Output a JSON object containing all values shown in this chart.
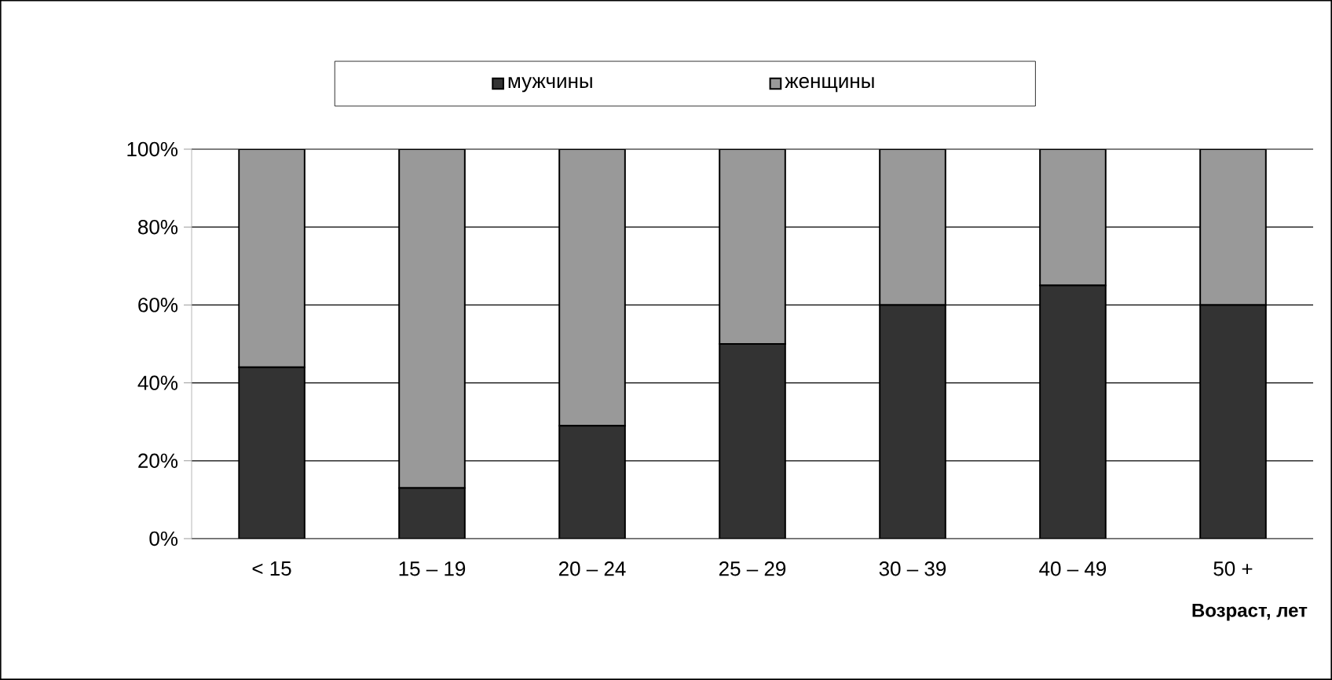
{
  "chart_data": {
    "type": "bar",
    "stacked": true,
    "xlabel": "Возраст, лет",
    "categories": [
      "< 15",
      "15 – 19",
      "20 – 24",
      "25 – 29",
      "30 – 39",
      "40 – 49",
      "50 +"
    ],
    "series": [
      {
        "name": "мужчины",
        "color": "#333333",
        "values": [
          44,
          13,
          29,
          50,
          60,
          65,
          60
        ]
      },
      {
        "name": "женщины",
        "color": "#999999",
        "values": [
          56,
          87,
          71,
          50,
          40,
          35,
          40
        ]
      }
    ],
    "ylim": [
      0,
      100
    ],
    "yticks": [
      {
        "value": 0,
        "label": "0%"
      },
      {
        "value": 20,
        "label": "20%"
      },
      {
        "value": 40,
        "label": "40%"
      },
      {
        "value": 60,
        "label": "60%"
      },
      {
        "value": 80,
        "label": "80%"
      },
      {
        "value": 100,
        "label": "100%"
      }
    ],
    "grid": "y",
    "legend": "top"
  }
}
